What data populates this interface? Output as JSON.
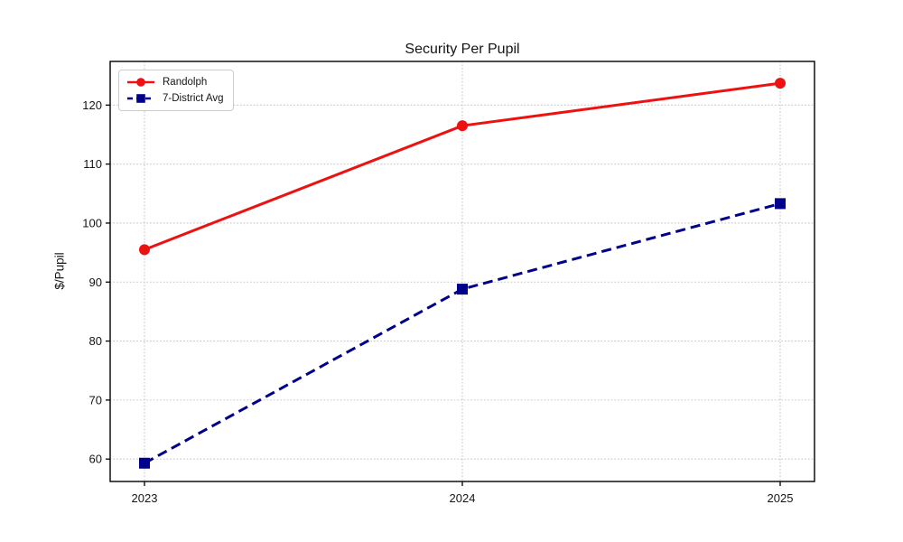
{
  "chart_data": {
    "type": "line",
    "title": "Security Per Pupil",
    "xlabel": "",
    "ylabel": "$/Pupil",
    "x": [
      "2023",
      "2024",
      "2025"
    ],
    "series": [
      {
        "name": "Randolph",
        "values": [
          95.5,
          116.5,
          123.7
        ],
        "color": "#ee1111",
        "linestyle": "solid",
        "marker": "circle"
      },
      {
        "name": "7-District Avg",
        "values": [
          59.3,
          88.8,
          103.3
        ],
        "color": "#00008b",
        "linestyle": "dashed",
        "marker": "square"
      }
    ],
    "ylim": [
      56.2,
      127.4
    ],
    "yticks": [
      60,
      70,
      80,
      90,
      100,
      110,
      120
    ],
    "grid": true,
    "grid_color": "#c9c9c9",
    "legend_position": "upper left"
  }
}
